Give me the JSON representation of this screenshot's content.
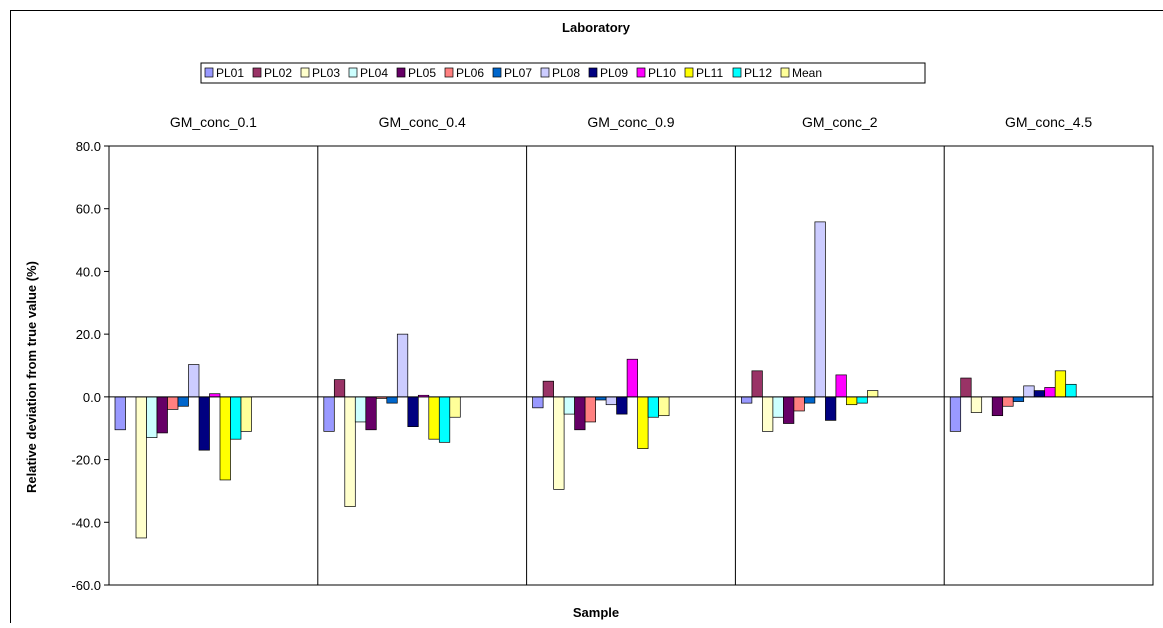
{
  "chart_data": {
    "type": "bar",
    "title": "Laboratory",
    "xlabel": "Sample",
    "ylabel": "Relative deviation from true value (%)",
    "ylim": [
      -60,
      80
    ],
    "ytick_step": 20,
    "ytick_labels": [
      "-60.0",
      "-40.0",
      "-20.0",
      "0.0",
      "20.0",
      "40.0",
      "60.0",
      "80.0"
    ],
    "legend_position": "top",
    "grid": "vertical",
    "categories": [
      "GM_conc_0.1",
      "GM_conc_0.4",
      "GM_conc_0.9",
      "GM_conc_2",
      "GM_conc_4.5"
    ],
    "series": [
      {
        "name": "PL01",
        "color": "#9999ff",
        "values": [
          -10.5,
          -11,
          -3.5,
          -2,
          -11
        ]
      },
      {
        "name": "PL02",
        "color": "#993366",
        "values": [
          0,
          5.5,
          5,
          8.3,
          6
        ]
      },
      {
        "name": "PL03",
        "color": "#ffffcc",
        "values": [
          -45,
          -35,
          -29.5,
          -11,
          -5
        ]
      },
      {
        "name": "PL04",
        "color": "#ccffff",
        "values": [
          -13,
          -8,
          -5.5,
          -6.5,
          0
        ]
      },
      {
        "name": "PL05",
        "color": "#660066",
        "values": [
          -11.5,
          -10.5,
          -10.5,
          -8.5,
          -6
        ]
      },
      {
        "name": "PL06",
        "color": "#ff8080",
        "values": [
          -4,
          -0.5,
          -8,
          -4.5,
          -3
        ]
      },
      {
        "name": "PL07",
        "color": "#0066cc",
        "values": [
          -3,
          -2,
          -1,
          -2,
          -1.5
        ]
      },
      {
        "name": "PL08",
        "color": "#ccccff",
        "values": [
          10.3,
          20,
          -2.5,
          55.8,
          3.5
        ]
      },
      {
        "name": "PL09",
        "color": "#000080",
        "values": [
          -17,
          -9.5,
          -5.5,
          -7.5,
          2
        ]
      },
      {
        "name": "PL10",
        "color": "#ff00ff",
        "values": [
          1,
          0.5,
          12,
          7,
          3
        ]
      },
      {
        "name": "PL11",
        "color": "#ffff00",
        "values": [
          -26.5,
          -13.5,
          -16.5,
          -2.5,
          8.3
        ]
      },
      {
        "name": "PL12",
        "color": "#00ffff",
        "values": [
          -13.5,
          -14.5,
          -6.5,
          -2,
          4
        ]
      },
      {
        "name": "Mean",
        "color": "#ffff99",
        "values": [
          -11,
          -6.5,
          -6,
          2,
          0
        ]
      }
    ]
  }
}
